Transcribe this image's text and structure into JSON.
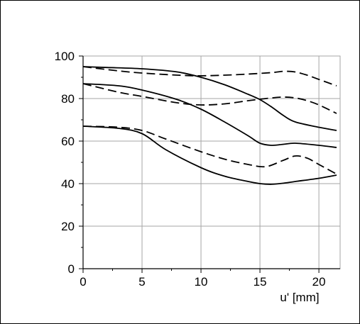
{
  "chart_data": {
    "type": "line",
    "title": "",
    "xlabel": "u' [mm]",
    "ylabel": "",
    "xlim": [
      0,
      21.8
    ],
    "ylim": [
      0,
      100
    ],
    "xticks": [
      0,
      5,
      10,
      15,
      20
    ],
    "yticks": [
      0,
      20,
      40,
      60,
      80,
      100
    ],
    "grid": true,
    "legend": "none",
    "line_color": "#000000",
    "grid_color": "#a6a6a6",
    "series": [
      {
        "style": "solid",
        "x": [
          0,
          2,
          5,
          8,
          10,
          12,
          14,
          15,
          16,
          17,
          18,
          20,
          21.5
        ],
        "y": [
          95,
          94.6,
          94,
          92.5,
          90,
          86.5,
          82,
          79.5,
          76,
          72,
          69,
          66.5,
          65
        ]
      },
      {
        "style": "solid",
        "x": [
          0,
          3,
          5,
          8,
          10,
          12,
          14,
          15,
          16,
          17,
          18,
          20,
          21.5
        ],
        "y": [
          87,
          86,
          84,
          79.5,
          75,
          69,
          62.5,
          59,
          58,
          58.5,
          59,
          58,
          57
        ]
      },
      {
        "style": "solid",
        "x": [
          0,
          3,
          5,
          7,
          10,
          12,
          14,
          15,
          16,
          17,
          18,
          20,
          21.5
        ],
        "y": [
          67,
          66,
          63.5,
          56,
          47.5,
          43.5,
          41,
          40,
          39.7,
          40.2,
          41,
          42.5,
          44
        ]
      },
      {
        "style": "dashed",
        "x": [
          0,
          3,
          5,
          8,
          10,
          12,
          14,
          16,
          17,
          18,
          19,
          20,
          21.5
        ],
        "y": [
          95,
          93,
          92,
          91,
          90.7,
          91,
          91.5,
          92.2,
          92.8,
          92.5,
          91,
          89,
          86
        ]
      },
      {
        "style": "dashed",
        "x": [
          0,
          3,
          5,
          8,
          10,
          12,
          14,
          16,
          17,
          18,
          19,
          20,
          21.5
        ],
        "y": [
          87,
          83,
          81,
          78,
          77,
          77.5,
          79,
          80.3,
          80.7,
          80.3,
          79,
          77,
          73
        ]
      },
      {
        "style": "dashed",
        "x": [
          0,
          3,
          5,
          7,
          10,
          12,
          14,
          15.5,
          17,
          18,
          19,
          20,
          21.5
        ],
        "y": [
          67,
          66.5,
          65,
          61,
          55,
          51.5,
          49,
          48,
          51,
          53,
          52,
          49,
          44.5
        ]
      }
    ]
  }
}
